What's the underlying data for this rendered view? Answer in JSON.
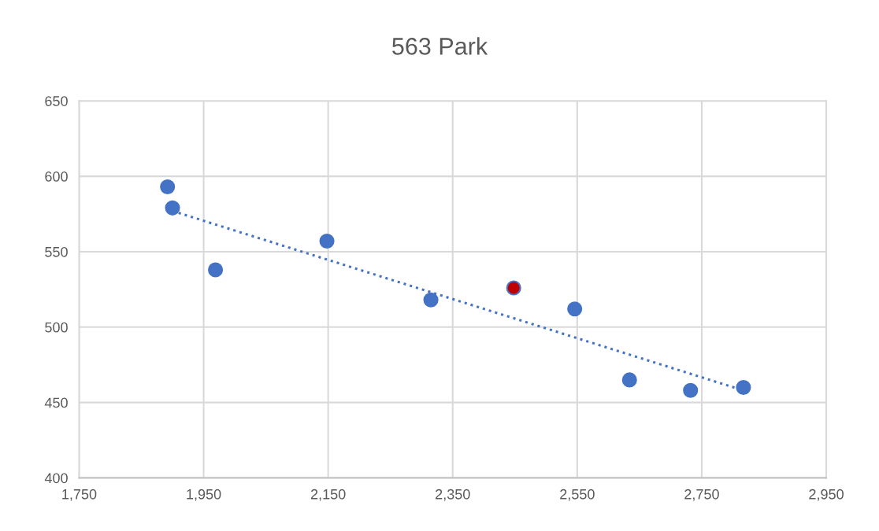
{
  "chart_data": {
    "type": "scatter",
    "title": "563 Park",
    "xlim": [
      1750,
      2950
    ],
    "xticks": [
      {
        "value": 1750,
        "label": "1,750"
      },
      {
        "value": 1950,
        "label": "1,950"
      },
      {
        "value": 2150,
        "label": "2,150"
      },
      {
        "value": 2350,
        "label": "2,350"
      },
      {
        "value": 2550,
        "label": "2,550"
      },
      {
        "value": 2750,
        "label": "2,750"
      },
      {
        "value": 2950,
        "label": "2,950"
      }
    ],
    "ylim": [
      400,
      650
    ],
    "yticks": [
      400,
      450,
      500,
      550,
      600,
      650
    ],
    "grid": true,
    "series": [
      {
        "color": "#4472c4",
        "marker": "circle",
        "x": [
          1892,
          1900,
          1969,
          2148,
          2315,
          2448,
          2546,
          2634,
          2732,
          2817
        ],
        "values": [
          593,
          579,
          538,
          557,
          518,
          526,
          512,
          465,
          458,
          460
        ],
        "colors": [
          "#4472c4",
          "#4472c4",
          "#4472c4",
          "#4472c4",
          "#4472c4",
          "#c00000",
          "#4472c4",
          "#4472c4",
          "#4472c4",
          "#4472c4"
        ]
      },
      {
        "type": "line",
        "color": "#4472c4",
        "line_style": "dotted",
        "x": [
          1900,
          2817
        ],
        "values": [
          577,
          458
        ]
      }
    ]
  }
}
